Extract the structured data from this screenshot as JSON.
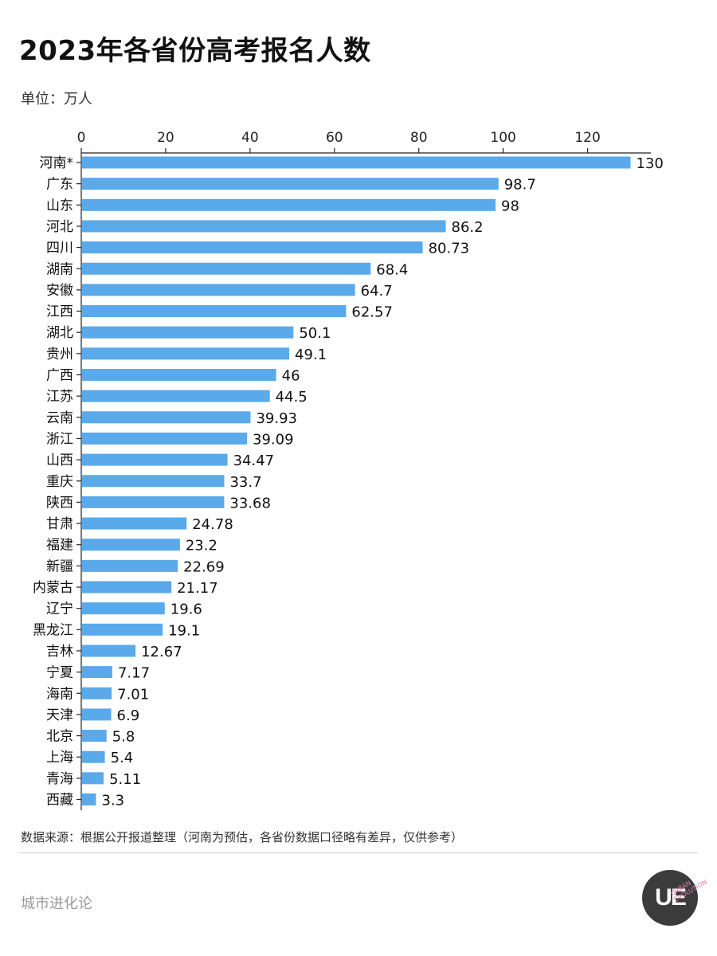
{
  "header": {
    "title": "2023年各省份高考报名人数",
    "unit": "单位：万人"
  },
  "chart_data": {
    "type": "bar",
    "orientation": "horizontal",
    "title": "2023年各省份高考报名人数",
    "xlabel": "",
    "ylabel": "",
    "unit": "单位：万人",
    "xlim": [
      0,
      135
    ],
    "xticks": [
      0,
      20,
      40,
      60,
      80,
      100,
      120
    ],
    "grid": false,
    "bar_color": "#5aa9ea",
    "categories": [
      "河南*",
      "广东",
      "山东",
      "河北",
      "四川",
      "湖南",
      "安徽",
      "江西",
      "湖北",
      "贵州",
      "广西",
      "江苏",
      "云南",
      "浙江",
      "山西",
      "重庆",
      "陕西",
      "甘肃",
      "福建",
      "新疆",
      "内蒙古",
      "辽宁",
      "黑龙江",
      "吉林",
      "宁夏",
      "海南",
      "天津",
      "北京",
      "上海",
      "青海",
      "西藏"
    ],
    "values": [
      130,
      98.7,
      98,
      86.2,
      80.73,
      68.4,
      64.7,
      62.57,
      50.1,
      49.1,
      46,
      44.5,
      39.93,
      39.09,
      34.47,
      33.7,
      33.68,
      24.78,
      23.2,
      22.69,
      21.17,
      19.6,
      19.1,
      12.67,
      7.17,
      7.01,
      6.9,
      5.8,
      5.4,
      5.11,
      3.3
    ],
    "value_labels": [
      "130",
      "98.7",
      "98",
      "86.2",
      "80.73",
      "68.4",
      "64.7",
      "62.57",
      "50.1",
      "49.1",
      "46",
      "44.5",
      "39.93",
      "39.09",
      "34.47",
      "33.7",
      "33.68",
      "24.78",
      "23.2",
      "22.69",
      "21.17",
      "19.6",
      "19.1",
      "12.67",
      "7.17",
      "7.01",
      "6.9",
      "5.8",
      "5.4",
      "5.11",
      "3.3"
    ]
  },
  "footer": {
    "source": "数据来源：根据公开报道整理（河南为预估，各省份数据口径略有差异，仅供参考）",
    "brand": "城市进化论",
    "logo_text": "UE",
    "logo_sub": "URBAN EVOLUTION"
  }
}
